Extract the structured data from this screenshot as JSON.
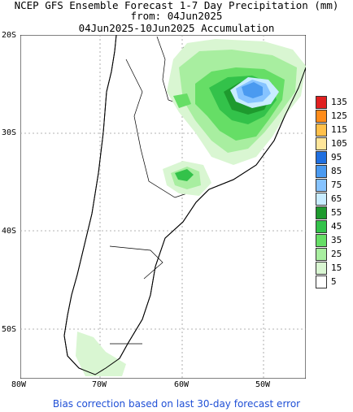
{
  "header": {
    "line1": "NCEP GFS Ensemble Forecast 1-7 Day Precipitation (mm)",
    "line2": "from: 04Jun2025",
    "line3": "04Jun2025-10Jun2025 Accumulation"
  },
  "axes": {
    "lat_labels": [
      "20S",
      "30S",
      "40S",
      "50S"
    ],
    "lon_labels": [
      "80W",
      "70W",
      "60W",
      "50W"
    ]
  },
  "legend": {
    "levels": [
      "135",
      "125",
      "115",
      "105",
      "95",
      "85",
      "75",
      "65",
      "55",
      "45",
      "35",
      "25",
      "15",
      "5"
    ],
    "colors": [
      "#e02020",
      "#ff8c1a",
      "#ffc04a",
      "#ffe69a",
      "#1f6fe0",
      "#4a9af0",
      "#86c3ff",
      "#c8ecff",
      "#1e9a2e",
      "#33c24a",
      "#66de66",
      "#a8eea0",
      "#d9f6d2",
      "#ffffff"
    ]
  },
  "footer": "Bias correction based on last 30-day forecast error"
}
